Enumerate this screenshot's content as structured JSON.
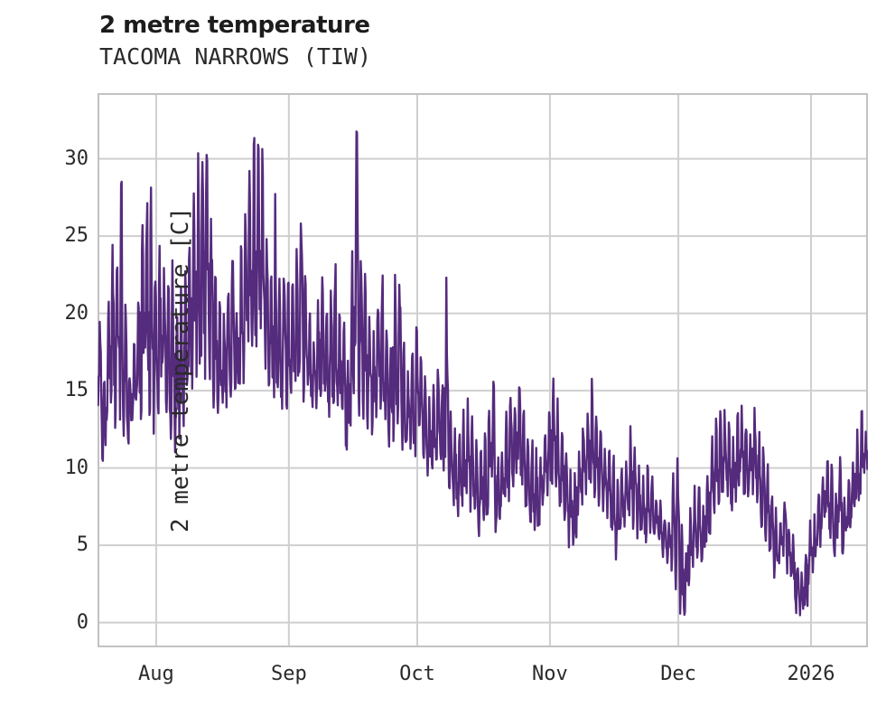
{
  "chart_data": {
    "type": "line",
    "title": "2 metre temperature",
    "subtitle": "TACOMA NARROWS (TIW)",
    "ylabel": "2 metre temperature [C]",
    "xlabel": "",
    "ylim": [
      -1.6,
      34.25
    ],
    "grid": true,
    "legend": "none",
    "line_color": "#552b7d",
    "grid_color": "#cfcfcf",
    "frame_color": "#c2c2c2",
    "yticks": [
      {
        "label": "0",
        "value": 0
      },
      {
        "label": "5",
        "value": 5
      },
      {
        "label": "10",
        "value": 10
      },
      {
        "label": "15",
        "value": 15
      },
      {
        "label": "20",
        "value": 20
      },
      {
        "label": "25",
        "value": 25
      },
      {
        "label": "30",
        "value": 30
      }
    ],
    "days_total": 180,
    "xticks": [
      {
        "label": "Aug",
        "day": 13.7
      },
      {
        "label": "Sep",
        "day": 44.7
      },
      {
        "label": "Oct",
        "day": 74.7
      },
      {
        "label": "Nov",
        "day": 105.7
      },
      {
        "label": "Dec",
        "day": 135.7
      },
      {
        "label": "2026",
        "day": 166.7
      }
    ],
    "series": [
      {
        "name": "2 metre temperature",
        "resolution": "daily min/max envelope of sub-daily trace, one value pair per day across ticks Aug..2026",
        "min": [
          12.0,
          10.5,
          12.5,
          13.0,
          12.5,
          13.0,
          12.0,
          11.5,
          12.0,
          12.5,
          13.0,
          14.0,
          13.5,
          12.0,
          13.0,
          13.5,
          12.5,
          12.0,
          11.0,
          12.0,
          13.0,
          13.5,
          14.0,
          15.0,
          15.5,
          16.0,
          15.0,
          14.0,
          13.5,
          13.0,
          14.0,
          14.5,
          14.0,
          15.0,
          15.5,
          16.0,
          17.0,
          17.0,
          16.5,
          15.0,
          14.5,
          14.0,
          13.5,
          14.0,
          13.5,
          14.0,
          14.5,
          15.0,
          14.0,
          13.5,
          13.0,
          13.5,
          14.0,
          13.0,
          13.5,
          14.0,
          13.0,
          12.5,
          10.3,
          13.0,
          14.0,
          13.5,
          13.0,
          12.5,
          12.0,
          12.5,
          13.0,
          12.0,
          11.5,
          12.0,
          12.5,
          11.0,
          10.5,
          10.0,
          10.5,
          10.0,
          9.5,
          8.5,
          9.0,
          9.5,
          9.0,
          9.5,
          8.5,
          7.0,
          6.5,
          7.5,
          8.0,
          7.0,
          6.0,
          5.1,
          6.0,
          7.0,
          7.5,
          5.0,
          6.0,
          7.0,
          8.0,
          8.5,
          9.0,
          8.0,
          7.0,
          6.5,
          6.0,
          5.8,
          7.0,
          8.0,
          8.5,
          8.0,
          7.0,
          6.0,
          5.0,
          4.6,
          6.0,
          7.0,
          8.0,
          8.5,
          8.0,
          7.5,
          7.0,
          6.5,
          5.5,
          4.2,
          5.0,
          6.0,
          6.5,
          6.0,
          5.5,
          5.0,
          5.5,
          6.0,
          5.0,
          4.5,
          4.0,
          3.5,
          3.0,
          2.0,
          0.5,
          0.4,
          2.0,
          3.0,
          4.0,
          3.5,
          5.0,
          6.0,
          7.0,
          7.5,
          8.0,
          7.5,
          7.0,
          8.0,
          8.5,
          8.0,
          7.5,
          8.0,
          7.0,
          6.0,
          5.0,
          4.0,
          2.9,
          3.5,
          4.0,
          3.0,
          2.0,
          0.5,
          0.0,
          1.0,
          2.5,
          3.0,
          4.0,
          5.0,
          5.5,
          5.0,
          4.5,
          5.5,
          4.4,
          5.0,
          6.0,
          7.0,
          8.0,
          9.5
        ],
        "max": [
          20.7,
          15.5,
          21.5,
          24.8,
          23.8,
          28.3,
          20.5,
          16.5,
          18.0,
          21.0,
          26.7,
          27.0,
          28.3,
          24.5,
          24.5,
          25.0,
          22.0,
          23.5,
          20.0,
          21.5,
          23.0,
          25.0,
          27.5,
          30.2,
          30.5,
          32.8,
          26.5,
          22.5,
          21.0,
          20.0,
          22.5,
          23.5,
          21.0,
          24.0,
          26.5,
          29.5,
          31.2,
          31.0,
          30.5,
          26.5,
          24.0,
          27.8,
          22.0,
          23.5,
          22.0,
          23.0,
          24.5,
          28.2,
          22.5,
          20.5,
          19.5,
          21.0,
          22.5,
          20.0,
          21.5,
          23.0,
          20.0,
          19.5,
          18.0,
          24.0,
          31.6,
          23.5,
          22.5,
          20.0,
          19.0,
          21.5,
          22.3,
          20.5,
          19.0,
          22.5,
          23.3,
          18.0,
          16.5,
          17.5,
          19.5,
          18.5,
          16.0,
          14.5,
          15.5,
          17.5,
          15.0,
          22.3,
          14.0,
          12.5,
          12.0,
          13.5,
          14.5,
          13.0,
          11.5,
          11.0,
          12.5,
          14.0,
          15.5,
          10.5,
          12.0,
          13.5,
          15.1,
          14.5,
          15.6,
          13.5,
          12.0,
          11.5,
          11.0,
          10.5,
          12.5,
          14.0,
          15.6,
          14.4,
          12.5,
          11.0,
          10.0,
          9.5,
          11.5,
          13.3,
          14.5,
          15.5,
          13.5,
          12.5,
          12.0,
          11.5,
          10.5,
          9.0,
          10.0,
          11.5,
          12.8,
          11.5,
          10.0,
          9.5,
          9.9,
          9.5,
          8.5,
          8.0,
          7.5,
          7.0,
          10.4,
          10.4,
          6.0,
          5.5,
          7.5,
          8.5,
          9.0,
          8.0,
          10.5,
          12.0,
          13.2,
          13.9,
          13.5,
          12.8,
          12.3,
          13.5,
          13.9,
          13.0,
          12.5,
          13.7,
          12.0,
          11.0,
          10.2,
          8.5,
          7.5,
          6.7,
          9.0,
          6.5,
          5.5,
          4.0,
          3.5,
          4.5,
          6.5,
          7.0,
          8.5,
          10.0,
          11.5,
          10.5,
          8.0,
          10.4,
          8.0,
          9.2,
          10.5,
          12.5,
          14.0,
          12.5
        ]
      }
    ]
  }
}
